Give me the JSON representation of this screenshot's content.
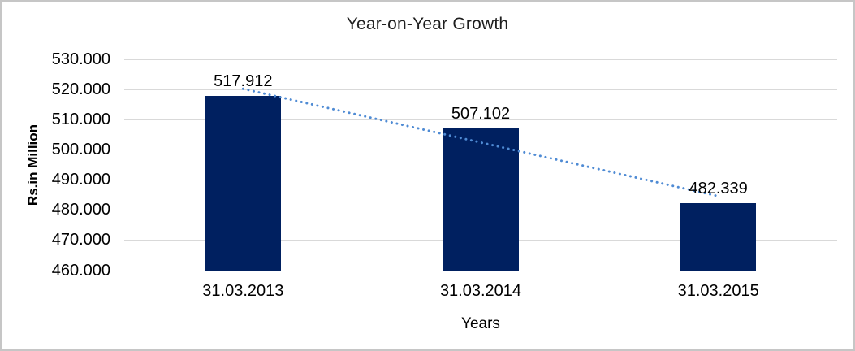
{
  "frame": {
    "background": "#ffffff",
    "border_color": "#c6c6c6"
  },
  "chart_data": {
    "type": "bar",
    "title": "Year-on-Year Growth",
    "xlabel": "Years",
    "ylabel": "Rs.in Million",
    "categories": [
      "31.03.2013",
      "31.03.2014",
      "31.03.2015"
    ],
    "values": [
      517912,
      507102,
      482339
    ],
    "data_labels": [
      "517.912",
      "507.102",
      "482.339"
    ],
    "y_ticks": [
      {
        "value": 530000,
        "label": "530.000"
      },
      {
        "value": 520000,
        "label": "520.000"
      },
      {
        "value": 510000,
        "label": "510.000"
      },
      {
        "value": 500000,
        "label": "500.000"
      },
      {
        "value": 490000,
        "label": "490.000"
      },
      {
        "value": 480000,
        "label": "480.000"
      },
      {
        "value": 470000,
        "label": "470.000"
      },
      {
        "value": 460000,
        "label": "460.000"
      }
    ],
    "ylim": [
      460000,
      530000
    ],
    "grid": true,
    "legend": "none",
    "trendline": {
      "type": "linear",
      "style": "dotted"
    },
    "colors": {
      "bar": "#002060",
      "trendline": "#4f8bd4",
      "gridline": "#d9d9d9",
      "text": "#000000"
    }
  }
}
